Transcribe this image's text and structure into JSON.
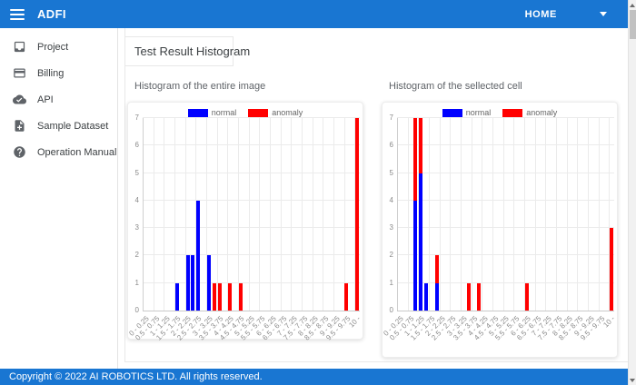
{
  "header": {
    "app_title": "ADFI",
    "nav_home_label": "HOME"
  },
  "sidebar": {
    "items": [
      {
        "label": "Project",
        "icon": "inbox-icon"
      },
      {
        "label": "Billing",
        "icon": "credit-card-icon"
      },
      {
        "label": "API",
        "icon": "cloud-done-icon"
      },
      {
        "label": "Sample Dataset",
        "icon": "note-add-icon"
      },
      {
        "label": "Operation Manual",
        "icon": "help-icon"
      }
    ]
  },
  "main": {
    "page_title": "Test Result Histogram"
  },
  "footer": {
    "copyright": "Copyright © 2022 AI ROBOTICS LTD. All rights reserved."
  },
  "colors": {
    "header_blue": "#1976d2",
    "normal_blue": "#0000ff",
    "anomaly_red": "#ff0000"
  },
  "chart_data": [
    {
      "type": "bar",
      "title": "Histogram of the entire image",
      "stacked": true,
      "num_bins": 41,
      "bin_width": 0.25,
      "x_tick_labels": [
        "0 - 0.25",
        "0.5 - 0.75",
        "1 - 1.25",
        "1.5 - 1.75",
        "2 - 2.25",
        "2.5 - 2.75",
        "3 - 3.25",
        "3.5 - 3.75",
        "4 - 4.25",
        "4.5 - 4.75",
        "5 - 5.25",
        "5.5 - 5.75",
        "6 - 6.25",
        "6.5 - 6.75",
        "7 - 7.25",
        "7.5 - 7.75",
        "8 - 8.25",
        "8.5 - 8.75",
        "9 - 9.25",
        "9.5 - 9.75",
        "10 -"
      ],
      "ylim": [
        0,
        7
      ],
      "yticks": [
        0,
        1,
        2,
        3,
        4,
        5,
        6,
        7
      ],
      "legend_position": "top",
      "grid": true,
      "series": [
        {
          "name": "normal",
          "color": "#0000ff",
          "values": [
            0,
            0,
            0,
            0,
            0,
            0,
            1,
            0,
            2,
            2,
            4,
            0,
            2,
            0,
            0,
            0,
            0,
            0,
            0,
            0,
            0,
            0,
            0,
            0,
            0,
            0,
            0,
            0,
            0,
            0,
            0,
            0,
            0,
            0,
            0,
            0,
            0,
            0,
            0,
            0,
            0
          ]
        },
        {
          "name": "anomaly",
          "color": "#ff0000",
          "values": [
            0,
            0,
            0,
            0,
            0,
            0,
            0,
            0,
            0,
            0,
            0,
            0,
            0,
            1,
            1,
            0,
            1,
            0,
            1,
            0,
            0,
            0,
            0,
            0,
            0,
            0,
            0,
            0,
            0,
            0,
            0,
            0,
            0,
            0,
            0,
            0,
            0,
            0,
            1,
            0,
            7
          ]
        }
      ]
    },
    {
      "type": "bar",
      "title": "Histogram of the sellected cell",
      "stacked": true,
      "num_bins": 41,
      "bin_width": 0.25,
      "x_tick_labels": [
        "0 - 0.25",
        "0.5 - 0.75",
        "1 - 1.25",
        "1.5 - 1.75",
        "2 - 2.25",
        "2.5 - 2.75",
        "3 - 3.25",
        "3.5 - 3.75",
        "4 - 4.25",
        "4.5 - 4.75",
        "5 - 5.25",
        "5.5 - 5.75",
        "6 - 6.25",
        "6.5 - 6.75",
        "7 - 7.25",
        "7.5 - 7.75",
        "8 - 8.25",
        "8.5 - 8.75",
        "9 - 9.25",
        "9.5 - 9.75",
        "10 -"
      ],
      "ylim": [
        0,
        7
      ],
      "yticks": [
        0,
        1,
        2,
        3,
        4,
        5,
        6,
        7
      ],
      "legend_position": "top",
      "grid": true,
      "series": [
        {
          "name": "normal",
          "color": "#0000ff",
          "values": [
            0,
            0,
            0,
            4,
            5,
            1,
            0,
            1,
            0,
            0,
            0,
            0,
            0,
            0,
            0,
            0,
            0,
            0,
            0,
            0,
            0,
            0,
            0,
            0,
            0,
            0,
            0,
            0,
            0,
            0,
            0,
            0,
            0,
            0,
            0,
            0,
            0,
            0,
            0,
            0,
            0
          ]
        },
        {
          "name": "anomaly",
          "color": "#ff0000",
          "values": [
            0,
            0,
            0,
            3,
            2,
            0,
            0,
            1,
            0,
            0,
            0,
            0,
            0,
            1,
            0,
            1,
            0,
            0,
            0,
            0,
            0,
            0,
            0,
            0,
            1,
            0,
            0,
            0,
            0,
            0,
            0,
            0,
            0,
            0,
            0,
            0,
            0,
            0,
            0,
            0,
            3
          ]
        }
      ]
    }
  ]
}
